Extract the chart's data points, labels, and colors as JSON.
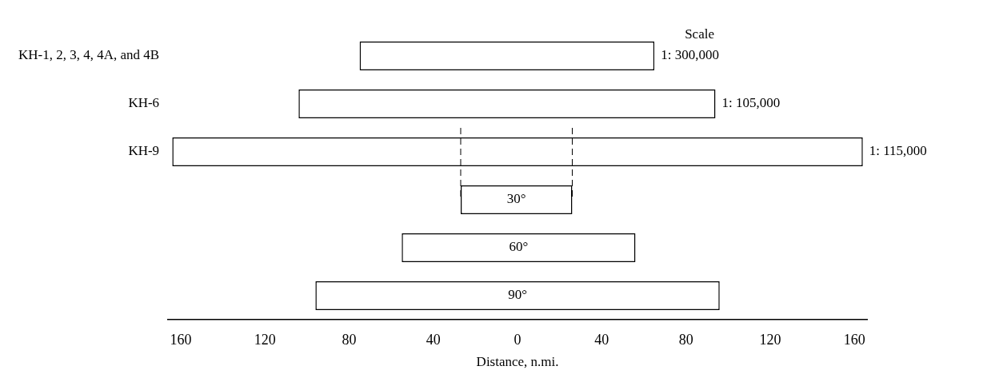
{
  "chart_data": {
    "type": "bar",
    "orientation": "horizontal",
    "categories": [
      "KH-1, 2, 3, 4, 4A, and 4B",
      "KH-6",
      "KH-9",
      "30°",
      "60°",
      "90°"
    ],
    "base": [
      -75,
      -104,
      -164,
      -27,
      -55,
      -96
    ],
    "values": [
      140,
      198,
      328,
      53,
      111,
      192
    ],
    "color": "#ffffff",
    "value_labels": [
      "1: 300,000",
      "1: 105,000",
      "1: 115,000",
      null,
      null,
      null
    ],
    "annotations": [
      "Scale"
    ],
    "ref_lines": [
      {
        "axis": "x",
        "value": -27,
        "line_style": "dashed",
        "color": "#000000"
      },
      {
        "axis": "x",
        "value": 26,
        "line_style": "dashed",
        "color": "#000000"
      }
    ],
    "xlabel": "Distance, n.mi.",
    "xlim": [
      -166,
      166
    ],
    "xticks": [
      {
        "value": -160,
        "label": "160"
      },
      {
        "value": -120,
        "label": "120"
      },
      {
        "value": -80,
        "label": "80"
      },
      {
        "value": -40,
        "label": "40"
      },
      0,
      40,
      80,
      120,
      160
    ],
    "grid": false,
    "legend": false
  }
}
